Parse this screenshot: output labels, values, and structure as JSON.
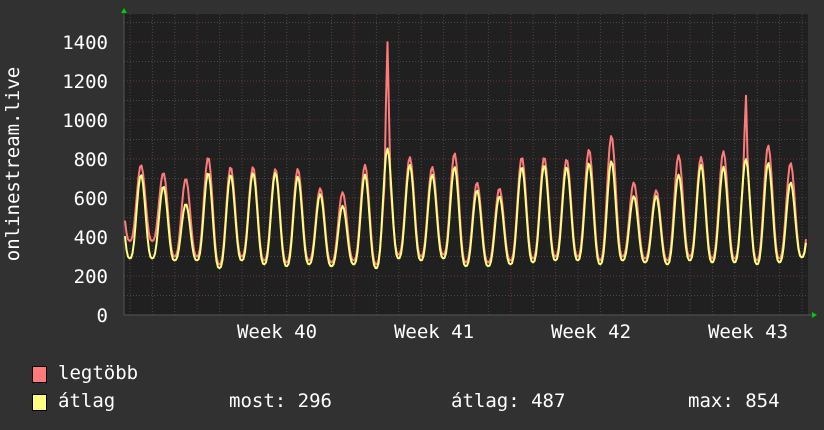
{
  "chart_data": {
    "type": "line",
    "ylabel": "onlinestream.live",
    "xlabel": "",
    "ylim": [
      0,
      1500
    ],
    "yticks": [
      0,
      200,
      400,
      600,
      800,
      1000,
      1200,
      1400
    ],
    "xticks": [
      "Week 40",
      "Week 41",
      "Week 42",
      "Week 43"
    ],
    "grid": true,
    "background": "#202020",
    "series": [
      {
        "name": "legtöbb",
        "color": "#ff7b7b",
        "daily_peaks": [
          770,
          730,
          700,
          810,
          760,
          760,
          750,
          750,
          650,
          630,
          770,
          1400,
          810,
          760,
          830,
          680,
          650,
          810,
          810,
          800,
          850,
          920,
          680,
          640,
          820,
          810,
          840,
          1130,
          870,
          780
        ],
        "daily_troughs": [
          380,
          300,
          300,
          260,
          300,
          280,
          270,
          280,
          270,
          280,
          260,
          310,
          300,
          310,
          270,
          270,
          280,
          290,
          300,
          300,
          280,
          300,
          290,
          280,
          300,
          290,
          290,
          280,
          290,
          296
        ]
      },
      {
        "name": "átlag",
        "color": "#ffff80",
        "daily_peaks": [
          720,
          660,
          570,
          730,
          720,
          730,
          730,
          710,
          620,
          560,
          720,
          854,
          770,
          720,
          760,
          640,
          610,
          760,
          770,
          760,
          780,
          790,
          610,
          610,
          720,
          770,
          760,
          800,
          780,
          680
        ],
        "daily_troughs": [
          290,
          280,
          280,
          240,
          280,
          260,
          250,
          260,
          250,
          260,
          240,
          290,
          280,
          290,
          250,
          250,
          260,
          270,
          280,
          280,
          260,
          280,
          270,
          260,
          280,
          270,
          270,
          260,
          270,
          296
        ]
      }
    ]
  },
  "legend": {
    "max_label": "legtöbb",
    "avg_label": "átlag",
    "stats": {
      "now": "most: 296",
      "avg": "átlag: 487",
      "max": "max: 854"
    }
  }
}
